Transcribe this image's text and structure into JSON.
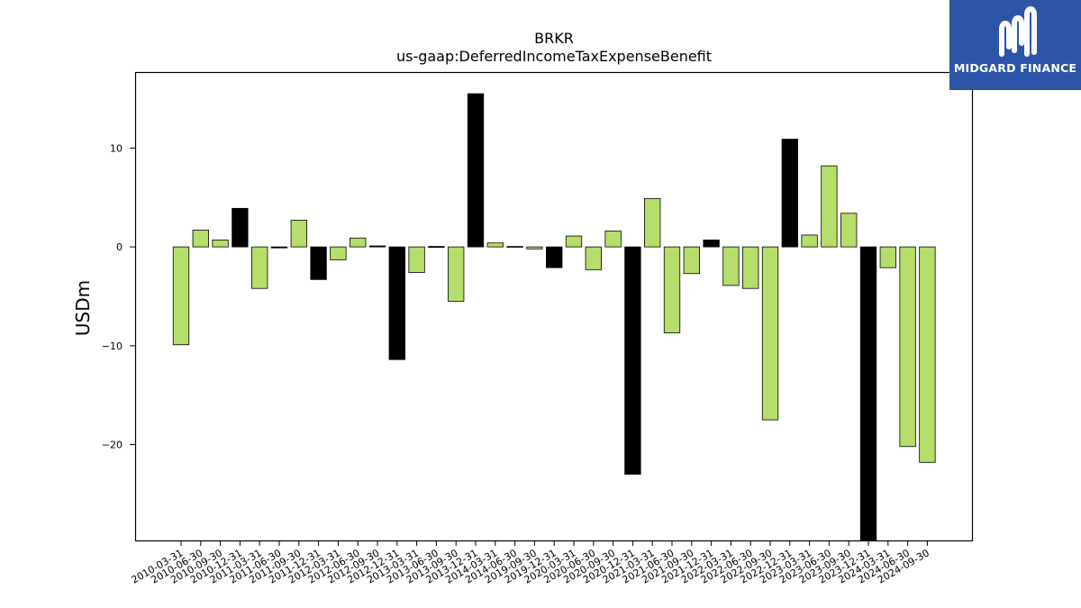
{
  "chart_data": {
    "type": "bar",
    "title": "BRKR",
    "subtitle": "us-gaap:DeferredIncomeTaxExpenseBenefit",
    "xlabel": "",
    "ylabel": "USDm",
    "ylim": [
      -29.7,
      17.6
    ],
    "yticks": [
      10,
      0,
      -10,
      -20
    ],
    "ytick_labels": [
      "10",
      "0",
      "−10",
      "−20"
    ],
    "grid": false,
    "colors": {
      "default": "#b5de6a",
      "highlight": "#000000",
      "edge": "#000000"
    },
    "categories": [
      "2010-03-31",
      "2010-06-30",
      "2010-09-30",
      "2010-12-31",
      "2011-03-31",
      "2011-06-30",
      "2011-09-30",
      "2011-12-31",
      "2012-03-31",
      "2012-06-30",
      "2012-09-30",
      "2012-12-31",
      "2013-03-31",
      "2013-06-30",
      "2013-09-30",
      "2013-12-31",
      "2014-03-31",
      "2014-06-30",
      "2019-09-30",
      "2019-12-31",
      "2020-03-31",
      "2020-06-30",
      "2020-09-30",
      "2020-12-31",
      "2021-03-31",
      "2021-06-30",
      "2021-09-30",
      "2021-12-31",
      "2022-03-31",
      "2022-06-30",
      "2022-09-30",
      "2022-12-31",
      "2023-03-31",
      "2023-06-30",
      "2023-09-30",
      "2023-12-31",
      "2024-03-31",
      "2024-06-30",
      "2024-09-30"
    ],
    "values": [
      -9.9,
      1.7,
      0.7,
      3.9,
      -4.2,
      -0.1,
      2.7,
      -3.3,
      -1.3,
      0.9,
      0.1,
      -11.4,
      -2.6,
      0.0,
      -5.5,
      15.5,
      0.4,
      0.0,
      -0.2,
      -2.1,
      1.1,
      -2.3,
      1.6,
      -23.0,
      4.9,
      -8.7,
      -2.7,
      0.7,
      -3.9,
      -4.2,
      -17.5,
      10.9,
      1.2,
      8.2,
      3.4,
      -29.7,
      -2.1,
      -20.2,
      -21.8
    ],
    "highlight": [
      false,
      false,
      false,
      true,
      false,
      true,
      false,
      true,
      false,
      false,
      true,
      true,
      false,
      true,
      false,
      true,
      false,
      false,
      false,
      true,
      false,
      false,
      false,
      true,
      false,
      false,
      false,
      true,
      false,
      false,
      false,
      true,
      false,
      false,
      false,
      true,
      false,
      false,
      false
    ]
  },
  "logo": {
    "text": "MIDGARD FINANCE",
    "icon": "midgard-logo-icon"
  }
}
